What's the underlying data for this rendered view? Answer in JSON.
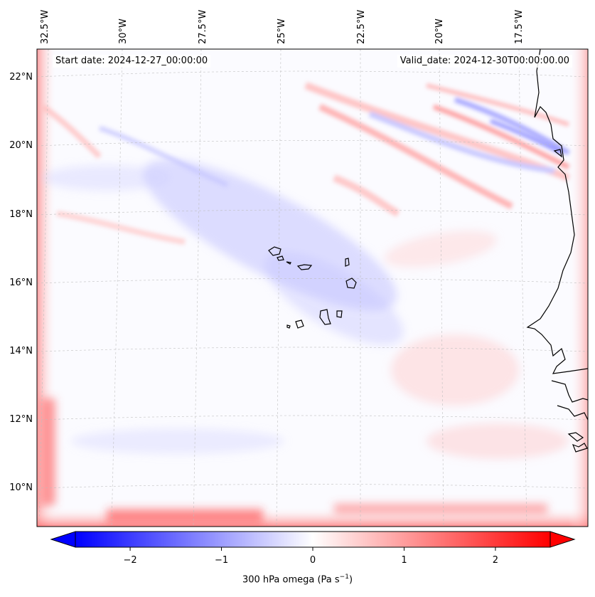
{
  "header": {
    "start_date": "Start date: 2024-12-27_00:00:00",
    "valid_date": "Valid_date: 2024-12-30T00:00:00.00"
  },
  "map": {
    "projection": "Lambert conformal (curved meridians)",
    "longitude_labels": [
      "32.5°W",
      "30°W",
      "27.5°W",
      "25°W",
      "22.5°W",
      "20°W",
      "17.5°W"
    ],
    "latitude_labels": [
      "22°N",
      "20°N",
      "18°N",
      "16°N",
      "14°N",
      "12°N",
      "10°N"
    ],
    "features": [
      "Cape Verde islands",
      "West African coastline"
    ]
  },
  "colorbar": {
    "label_prefix": "300 hPa omega (Pa s",
    "label_exponent": "−1",
    "label_suffix": ")",
    "ticks": [
      "−2",
      "−1",
      "0",
      "1",
      "2"
    ],
    "tick_values": [
      -2,
      -1,
      0,
      1,
      2
    ],
    "range": [
      -2.6,
      2.6
    ],
    "colormap": "bwr",
    "extend": "both",
    "low_color": "#0000ff",
    "mid_color": "#ffffff",
    "high_color": "#ff0000"
  }
}
